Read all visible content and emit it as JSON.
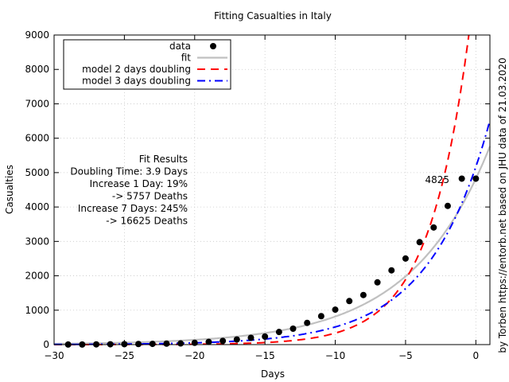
{
  "chart_data": {
    "type": "line",
    "title": "Fitting Casualties in Italy",
    "xlabel": "Days",
    "ylabel": "Casualties",
    "xlim": [
      -30,
      1
    ],
    "ylim": [
      0,
      9000
    ],
    "xticks": [
      -30,
      -25,
      -20,
      -15,
      -10,
      -5,
      0
    ],
    "yticks": [
      0,
      1000,
      2000,
      3000,
      4000,
      5000,
      6000,
      7000,
      8000,
      9000
    ],
    "grid": true,
    "legend_position": "top-left",
    "series": [
      {
        "name": "data",
        "style": "points",
        "color": "#000000",
        "x": [
          -29,
          -28,
          -27,
          -26,
          -25,
          -24,
          -23,
          -22,
          -21,
          -20,
          -19,
          -18,
          -17,
          -16,
          -15,
          -14,
          -13,
          -12,
          -11,
          -10,
          -9,
          -8,
          -7,
          -6,
          -5,
          -4,
          -3,
          -2,
          -1,
          0
        ],
        "y": [
          2,
          3,
          7,
          10,
          12,
          17,
          21,
          29,
          34,
          52,
          79,
          107,
          148,
          197,
          233,
          366,
          463,
          631,
          827,
          1016,
          1266,
          1441,
          1809,
          2158,
          2503,
          2978,
          3405,
          4032,
          4825,
          4825
        ]
      },
      {
        "name": "fit",
        "style": "solid",
        "color": "#c0c0c0",
        "base": 4825,
        "doubling_days": 3.9
      },
      {
        "name": "model 2 days doubling",
        "style": "dash",
        "color": "#ff0000",
        "base": 4825,
        "doubling_days": 2,
        "shift_days": -2.3
      },
      {
        "name": "model 3 days doubling",
        "style": "dashdot",
        "color": "#0000ff",
        "base": 4825,
        "doubling_days": 3,
        "shift_days": -0.3
      }
    ],
    "annotations": {
      "last_value": "4825",
      "fit_results": [
        "Fit Results",
        "Doubling Time: 3.9 Days",
        "Increase 1 Day: 19%",
        "-> 5757 Deaths",
        "Increase 7 Days: 245%",
        "-> 16625 Deaths"
      ],
      "credit": "by Torben https://entorb.net based on JHU data of 21.03.2020"
    }
  }
}
